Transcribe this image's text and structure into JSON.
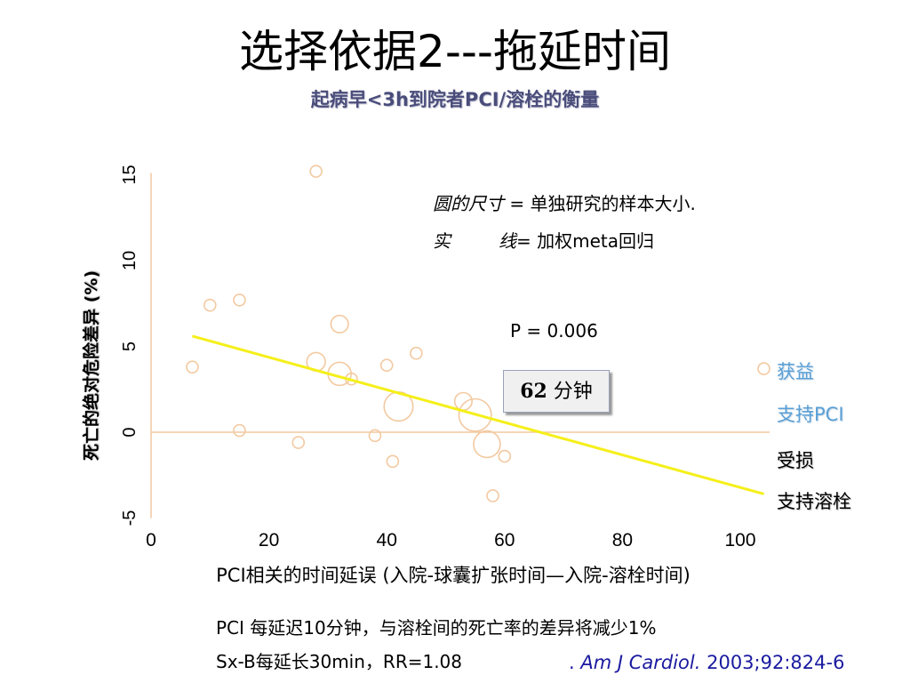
{
  "title": "选择依据2---拖延时间",
  "subtitle": "起病早<3h到院者PCI/溶栓的衡量",
  "legend": {
    "row1_key": "圆的尺寸",
    "row1_eq": " = ",
    "row1_val": "单独研究的样本大小.",
    "row2_key_a": "实",
    "row2_key_b": "线",
    "row2_eq": "= ",
    "row2_val": "加权meta回归"
  },
  "p_value": "P = 0.006",
  "box_label_num": "62",
  "box_label_unit": " 分钟",
  "side_labels": {
    "benefit": "获益",
    "favor_pci": "支持PCI",
    "harm": "受损",
    "favor_lysis": "支持溶栓"
  },
  "notes": {
    "line1": "PCI 每延迟10分钟，与溶栓间的死亡率的差异将减少1%",
    "line2": "Sx-B每延长30min，RR=1.08"
  },
  "citation": {
    "prefix": ". ",
    "journal": "Am J Cardiol.",
    "rest": " 2003;92:824-6"
  },
  "colors": {
    "regression_line": "#f5ef1a",
    "reference_line": "#f3c9a0",
    "circle_stroke": "#f3c9a0",
    "axis": "#f3c9a0",
    "favor_pci": "#5aa0d6"
  },
  "chart_data": {
    "type": "scatter",
    "xlabel": "PCI相关的时间延误 (入院-球囊扩张时间—入院-溶栓时间)",
    "ylabel": "死亡的绝对危险差异 (%)",
    "xlim": [
      0,
      105
    ],
    "ylim": [
      -5,
      15
    ],
    "x_ticks": [
      0,
      20,
      40,
      60,
      80,
      100
    ],
    "y_ticks": [
      -5,
      0,
      5,
      10,
      15
    ],
    "reference_y": 0,
    "regression_line": {
      "x": [
        7,
        104
      ],
      "y": [
        5.6,
        -3.6
      ]
    },
    "points": [
      {
        "x": 28,
        "y": 15.2,
        "size": 1
      },
      {
        "x": 10,
        "y": 7.4,
        "size": 1
      },
      {
        "x": 15,
        "y": 7.7,
        "size": 1
      },
      {
        "x": 32,
        "y": 6.3,
        "size": 1.5
      },
      {
        "x": 7,
        "y": 3.8,
        "size": 1
      },
      {
        "x": 28,
        "y": 4.1,
        "size": 1.6
      },
      {
        "x": 32,
        "y": 3.4,
        "size": 2
      },
      {
        "x": 34,
        "y": 3.1,
        "size": 1
      },
      {
        "x": 40,
        "y": 3.9,
        "size": 1
      },
      {
        "x": 45,
        "y": 4.6,
        "size": 1
      },
      {
        "x": 42,
        "y": 1.5,
        "size": 2.5
      },
      {
        "x": 15,
        "y": 0.1,
        "size": 1
      },
      {
        "x": 25,
        "y": -0.6,
        "size": 1
      },
      {
        "x": 38,
        "y": -0.2,
        "size": 1
      },
      {
        "x": 41,
        "y": -1.7,
        "size": 1
      },
      {
        "x": 53,
        "y": 1.8,
        "size": 1.5
      },
      {
        "x": 55,
        "y": 1.0,
        "size": 2.8
      },
      {
        "x": 57,
        "y": -0.7,
        "size": 2.3
      },
      {
        "x": 60,
        "y": -1.4,
        "size": 1
      },
      {
        "x": 58,
        "y": -3.7,
        "size": 1
      },
      {
        "x": 104,
        "y": 3.7,
        "size": 1
      }
    ]
  }
}
